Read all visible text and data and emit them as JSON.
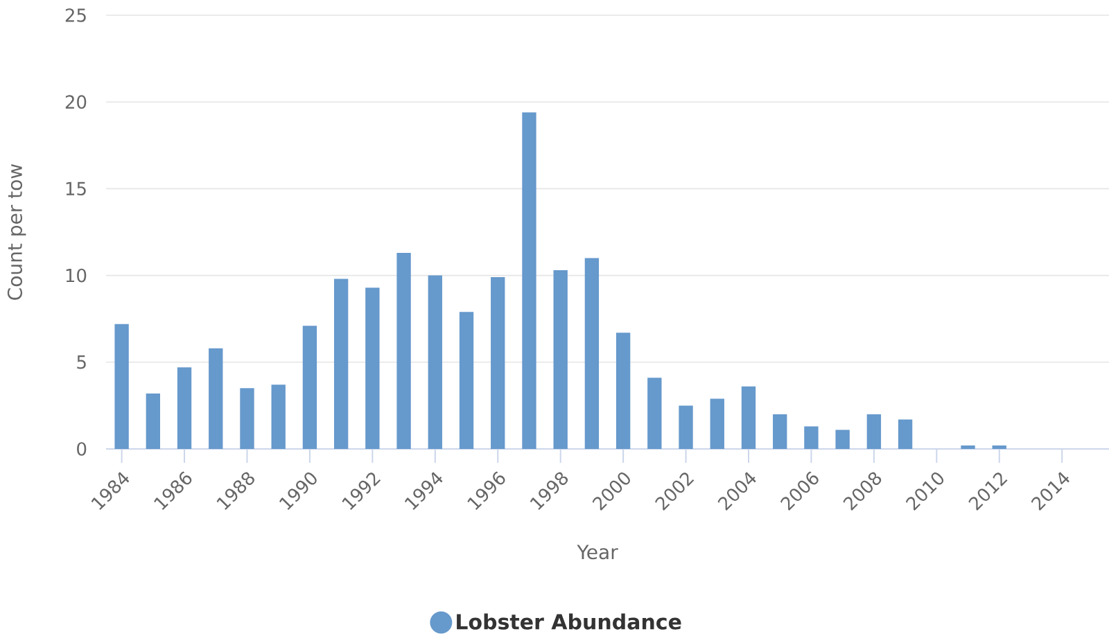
{
  "chart_data": {
    "type": "bar",
    "xlabel": "Year",
    "ylabel": "Count per tow",
    "x": [
      1984,
      1985,
      1986,
      1987,
      1988,
      1989,
      1990,
      1991,
      1992,
      1993,
      1994,
      1995,
      1996,
      1997,
      1998,
      1999,
      2000,
      2001,
      2002,
      2003,
      2004,
      2005,
      2006,
      2007,
      2008,
      2009,
      2010,
      2011,
      2012
    ],
    "series": [
      {
        "name": "Lobster Abundance",
        "color": "#6699cc",
        "values": [
          7.2,
          3.2,
          4.7,
          5.8,
          3.5,
          3.7,
          7.1,
          9.8,
          9.3,
          11.3,
          10.0,
          7.9,
          9.9,
          19.4,
          10.3,
          11.0,
          6.7,
          4.1,
          2.5,
          2.9,
          3.6,
          2.0,
          1.3,
          1.1,
          2.0,
          1.7,
          null,
          0.2,
          0.2
        ]
      }
    ],
    "xlim": [
      1983.5,
      2015.5
    ],
    "xticks": [
      1984,
      1986,
      1988,
      1990,
      1992,
      1994,
      1996,
      1998,
      2000,
      2002,
      2004,
      2006,
      2008,
      2010,
      2012,
      2014
    ],
    "ylim": [
      0,
      25
    ],
    "yticks": [
      0,
      5,
      10,
      15,
      20,
      25
    ],
    "grid": "y",
    "legend": "bottom",
    "marker": "circle"
  }
}
